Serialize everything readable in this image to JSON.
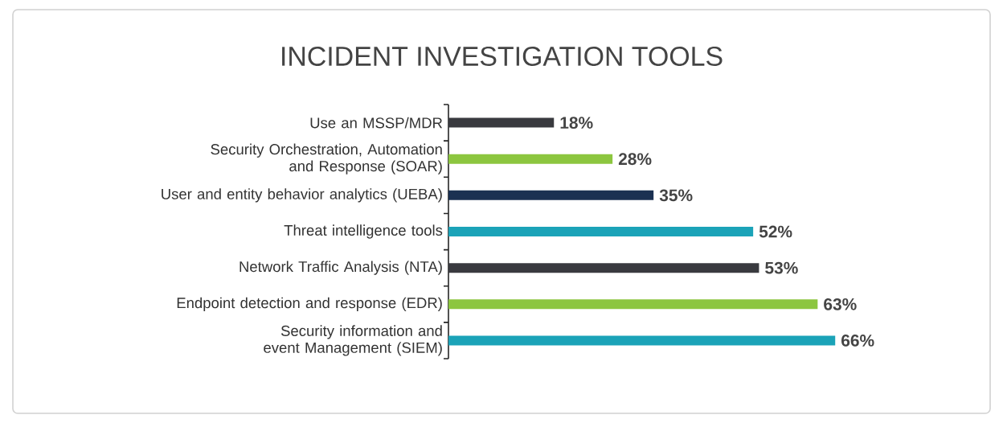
{
  "chart_data": {
    "type": "bar",
    "orientation": "horizontal",
    "title": "INCIDENT INVESTIGATION TOOLS",
    "categories": [
      "Use an MSSP/MDR",
      "Security Orchestration, Automation and Response (SOAR)",
      "User and entity behavior analytics (UEBA)",
      "Threat intelligence tools",
      "Network Traffic Analysis (NTA)",
      "Endpoint detection and response (EDR)",
      "Security information and event Management (SIEM)"
    ],
    "values": [
      18,
      28,
      35,
      52,
      53,
      63,
      66
    ],
    "value_labels": [
      "18%",
      "28%",
      "35%",
      "52%",
      "53%",
      "63%",
      "66%"
    ],
    "colors": [
      "#393a3f",
      "#8cc63f",
      "#1b3152",
      "#1ba3b8",
      "#393a3f",
      "#8cc63f",
      "#1ba3b8"
    ],
    "tick_labels": "y"
  }
}
